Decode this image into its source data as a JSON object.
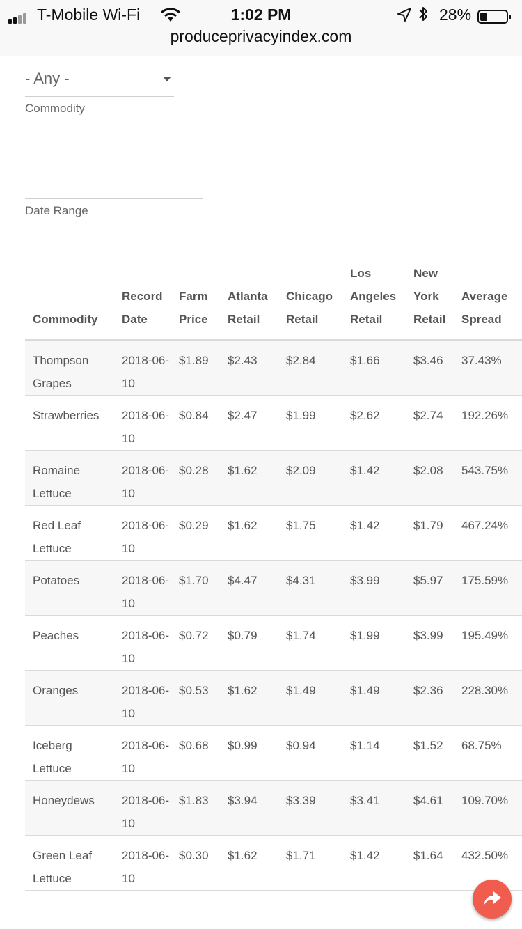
{
  "status": {
    "carrier": "T-Mobile Wi-Fi",
    "time": "1:02 PM",
    "battery_pct": "28%",
    "battery_level": 0.28,
    "url": "produceprivacyindex.com"
  },
  "filters": {
    "commodity_select": "- Any -",
    "commodity_label": "Commodity",
    "date_range_label": "Date Range"
  },
  "table": {
    "headers": {
      "commodity": "Commodity",
      "record_date": "Record Date",
      "farm_price": "Farm Price",
      "atlanta": "Atlanta Retail",
      "chicago": "Chicago Retail",
      "los_angeles": "Los Angeles Retail",
      "new_york": "New York Retail",
      "spread": "Average Spread"
    },
    "rows": [
      {
        "commodity": "Thompson Grapes",
        "date": "2018-06-10",
        "farm": "$1.89",
        "atl": "$2.43",
        "chi": "$2.84",
        "la": "$1.66",
        "ny": "$3.46",
        "spread": "37.43%"
      },
      {
        "commodity": "Strawberries",
        "date": "2018-06-10",
        "farm": "$0.84",
        "atl": "$2.47",
        "chi": "$1.99",
        "la": "$2.62",
        "ny": "$2.74",
        "spread": "192.26%"
      },
      {
        "commodity": "Romaine Lettuce",
        "date": "2018-06-10",
        "farm": "$0.28",
        "atl": "$1.62",
        "chi": "$2.09",
        "la": "$1.42",
        "ny": "$2.08",
        "spread": "543.75%"
      },
      {
        "commodity": "Red Leaf Lettuce",
        "date": "2018-06-10",
        "farm": "$0.29",
        "atl": "$1.62",
        "chi": "$1.75",
        "la": "$1.42",
        "ny": "$1.79",
        "spread": "467.24%"
      },
      {
        "commodity": "Potatoes",
        "date": "2018-06-10",
        "farm": "$1.70",
        "atl": "$4.47",
        "chi": "$4.31",
        "la": "$3.99",
        "ny": "$5.97",
        "spread": "175.59%"
      },
      {
        "commodity": "Peaches",
        "date": "2018-06-10",
        "farm": "$0.72",
        "atl": "$0.79",
        "chi": "$1.74",
        "la": "$1.99",
        "ny": "$3.99",
        "spread": "195.49%"
      },
      {
        "commodity": "Oranges",
        "date": "2018-06-10",
        "farm": "$0.53",
        "atl": "$1.62",
        "chi": "$1.49",
        "la": "$1.49",
        "ny": "$2.36",
        "spread": "228.30%"
      },
      {
        "commodity": "Iceberg Lettuce",
        "date": "2018-06-10",
        "farm": "$0.68",
        "atl": "$0.99",
        "chi": "$0.94",
        "la": "$1.14",
        "ny": "$1.52",
        "spread": "68.75%"
      },
      {
        "commodity": "Honeydews",
        "date": "2018-06-10",
        "farm": "$1.83",
        "atl": "$3.94",
        "chi": "$3.39",
        "la": "$3.41",
        "ny": "$4.61",
        "spread": "109.70%"
      },
      {
        "commodity": "Green Leaf Lettuce",
        "date": "2018-06-10",
        "farm": "$0.30",
        "atl": "$1.62",
        "chi": "$1.71",
        "la": "$1.42",
        "ny": "$1.64",
        "spread": "432.50%"
      }
    ]
  },
  "fab_icon": "share-icon"
}
